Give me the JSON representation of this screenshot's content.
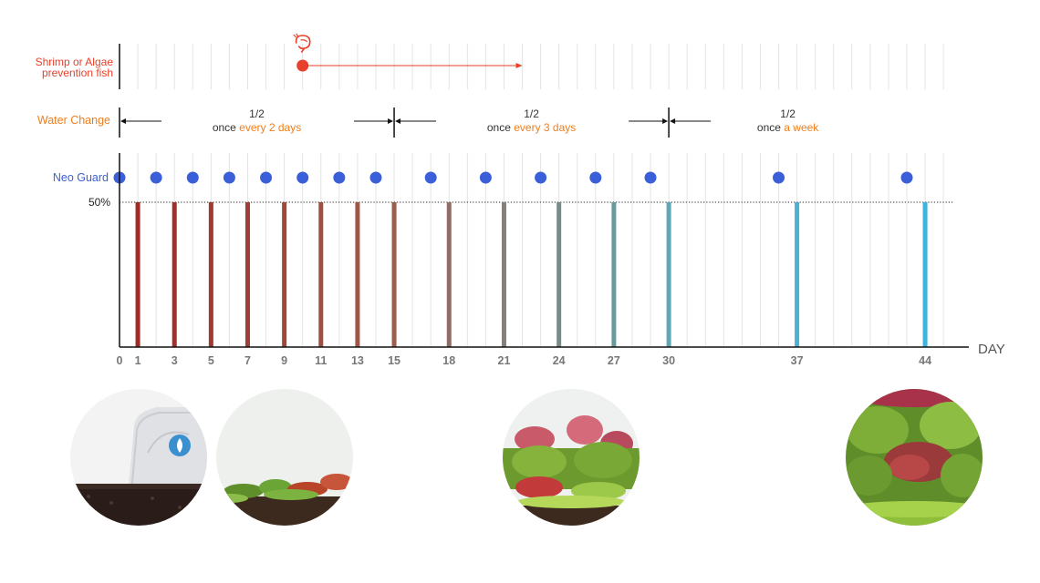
{
  "chart_data": {
    "type": "bar",
    "x_axis_label": "DAY",
    "xlim": [
      0,
      46
    ],
    "x_tick_labels": [
      0,
      1,
      3,
      5,
      7,
      9,
      11,
      13,
      15,
      18,
      21,
      24,
      27,
      30,
      37,
      44
    ],
    "y_reference_label": "50%",
    "water_change_days": [
      1,
      3,
      5,
      7,
      9,
      11,
      13,
      15,
      18,
      21,
      24,
      27,
      30,
      37,
      44
    ],
    "water_change_amount": 0.5,
    "bar_colors": [
      "#9e2b25",
      "#9e3129",
      "#a0392e",
      "#a04034",
      "#a0483a",
      "#a04e40",
      "#a05546",
      "#9a5e4c",
      "#8f6e66",
      "#86807c",
      "#7a8a88",
      "#6b9a9c",
      "#5fa7b5",
      "#4eb0d2",
      "#3db4de"
    ],
    "rows": {
      "shrimp": {
        "label_line1": "Shrimp or Algae",
        "label_line2": "prevention fish",
        "start_day": 10,
        "end_day": 22,
        "color": "#e8402a"
      },
      "water_change": {
        "label": "Water Change",
        "color": "#f07e1d",
        "boundaries": [
          0,
          15,
          30
        ],
        "periods": [
          {
            "from": 0,
            "to": 15,
            "fraction": "1/2",
            "prefix": "once ",
            "highlight": "every 2 days"
          },
          {
            "from": 15,
            "to": 30,
            "fraction": "1/2",
            "prefix": "once ",
            "highlight": "every 3 days"
          },
          {
            "from": 30,
            "to": 45,
            "fraction": "1/2",
            "prefix": "once ",
            "highlight": "a week"
          }
        ]
      },
      "neo_guard": {
        "label": "Neo Guard",
        "color": "#3a5fd9",
        "days": [
          0,
          2,
          4,
          6,
          8,
          10,
          12,
          14,
          17,
          20,
          23,
          26,
          29,
          36,
          43
        ]
      }
    }
  },
  "photos": [
    {
      "name": "substrate-bag",
      "day": 0
    },
    {
      "name": "early-planting",
      "day": 7
    },
    {
      "name": "growing-tank",
      "day": 21
    },
    {
      "name": "mature-tank",
      "day": 44
    }
  ]
}
